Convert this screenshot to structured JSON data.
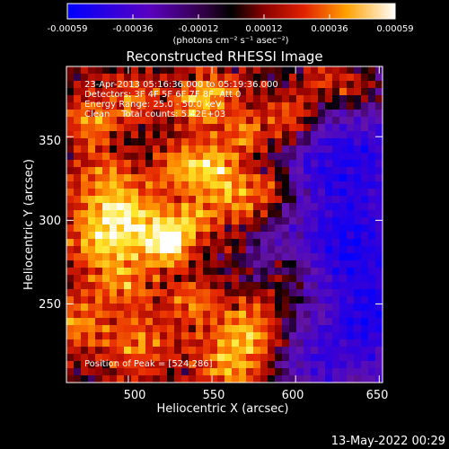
{
  "colorbar": {
    "ticks": [
      "-0.00059",
      "-0.00036",
      "-0.00012",
      "0.00012",
      "0.00036",
      "0.00059"
    ],
    "units": "(photons cm⁻² s⁻¹ asec⁻²)"
  },
  "image": {
    "title": "Reconstructed RHESSI Image",
    "info": [
      "23-Apr-2013 05:16:36.000 to 05:19:36.000",
      "Detectors: 3F 4F 5F 6F 7F 8F, Att 0",
      "Energy Range: 25.0 - 50.0 keV",
      "Clean    Total counts: 5.42E+03"
    ],
    "peak_text": "Position of Peak = [524,286]"
  },
  "chart_data": {
    "type": "heatmap",
    "title": "Reconstructed RHESSI Image",
    "xlabel": "Heliocentric X (arcsec)",
    "ylabel": "Heliocentric Y (arcsec)",
    "xlim": [
      463,
      652
    ],
    "ylim": [
      203,
      392
    ],
    "xticks": [
      500,
      550,
      600,
      650
    ],
    "yticks": [
      250,
      300,
      350
    ],
    "colorbar_range": [
      -0.00059,
      0.00059
    ],
    "colormap": "RHESSI red-temperature (blue-purple-black-red-yellow-white)",
    "peak_position": [
      524,
      286
    ],
    "grid": false
  },
  "footer": {
    "timestamp": "13-May-2022 00:29"
  }
}
